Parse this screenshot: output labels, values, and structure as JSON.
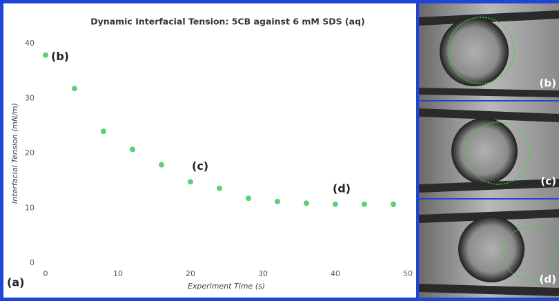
{
  "chart_data": {
    "type": "scatter",
    "title": "Dynamic Interfacial Tension: 5CB against 6 mM SDS (aq)",
    "xlabel": "Experiment Time (s)",
    "ylabel": "Interfacial Tension (mN/m)",
    "x": [
      0,
      4,
      8,
      12,
      16,
      20,
      24,
      28,
      32,
      36,
      40,
      44,
      48
    ],
    "values": [
      37.9,
      31.8,
      24.0,
      20.7,
      17.9,
      14.8,
      13.6,
      11.8,
      11.2,
      10.9,
      10.7,
      10.7,
      10.7
    ],
    "color": "#5ccf7c",
    "xlim": [
      0,
      50
    ],
    "xticks": [
      0,
      10,
      20,
      30,
      40,
      50
    ],
    "ylim": [
      0,
      40
    ],
    "yticks": [
      0,
      10,
      20,
      30,
      40
    ],
    "annotations": [
      "(b)",
      "(c)",
      "(d)",
      "(a)"
    ]
  },
  "photos": {
    "labels": [
      "(b)",
      "(c)",
      "(d)"
    ]
  }
}
